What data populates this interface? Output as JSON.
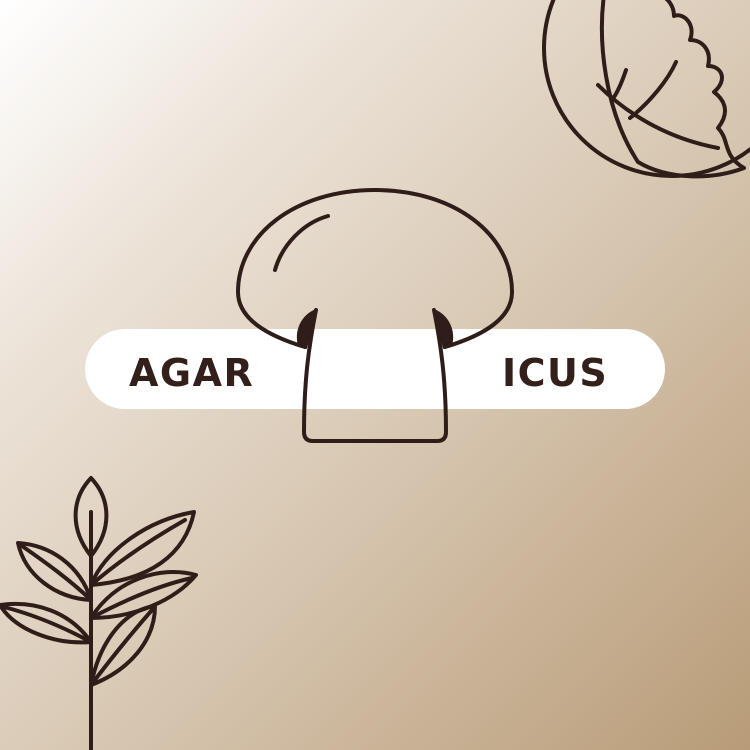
{
  "logo": {
    "text_left": "AGAR",
    "text_right": "ICUS"
  },
  "icons": {
    "mushroom": "mushroom-icon",
    "cabbage": "cabbage-icon",
    "plant": "plant-sprig-icon"
  },
  "colors": {
    "ink": "#2e1d18",
    "pill": "#ffffff",
    "background_light": "#ffffff",
    "background_dark": "#b89c77"
  }
}
